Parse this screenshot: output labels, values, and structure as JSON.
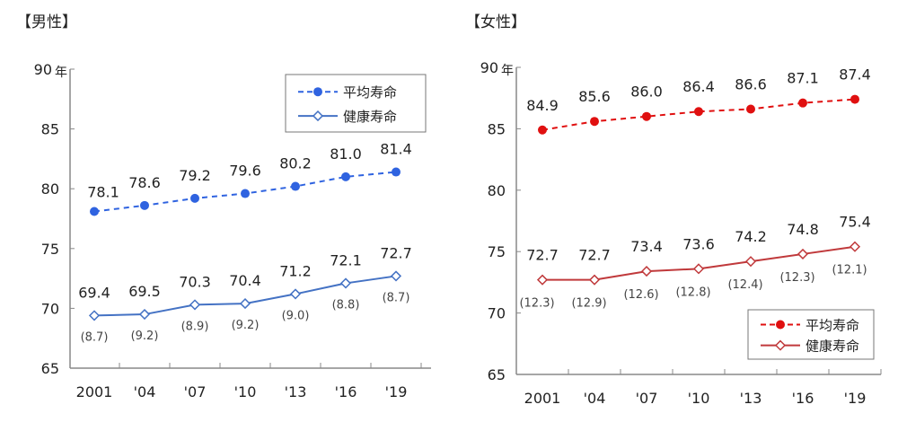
{
  "chart_data": [
    {
      "type": "line",
      "title": "【男性】",
      "y_unit": "年",
      "ylim": [
        65,
        90
      ],
      "yticks": [
        65,
        70,
        75,
        80,
        85,
        90
      ],
      "categories": [
        "2001",
        "'04",
        "'07",
        "'10",
        "'13",
        "'16",
        "'19"
      ],
      "legend_position": "top-right",
      "series": [
        {
          "name": "平均寿命",
          "values": [
            78.1,
            78.6,
            79.2,
            79.6,
            80.2,
            81.0,
            81.4
          ],
          "style": "dashed",
          "marker": "filled-circle",
          "color": "#2f63e0"
        },
        {
          "name": "健康寿命",
          "values": [
            69.4,
            69.5,
            70.3,
            70.4,
            71.2,
            72.1,
            72.7
          ],
          "style": "solid",
          "marker": "open-diamond",
          "color": "#4472c4",
          "gap_labels": [
            "(8.7)",
            "(9.2)",
            "(8.9)",
            "(9.2)",
            "(9.0)",
            "(8.8)",
            "(8.7)"
          ]
        }
      ]
    },
    {
      "type": "line",
      "title": "【女性】",
      "y_unit": "年",
      "ylim": [
        65,
        90
      ],
      "yticks": [
        65,
        70,
        75,
        80,
        85,
        90
      ],
      "categories": [
        "2001",
        "'04",
        "'07",
        "'10",
        "'13",
        "'16",
        "'19"
      ],
      "legend_position": "bottom-right",
      "series": [
        {
          "name": "平均寿命",
          "values": [
            84.9,
            85.6,
            86.0,
            86.4,
            86.6,
            87.1,
            87.4
          ],
          "style": "dashed",
          "marker": "filled-circle",
          "color": "#e01010"
        },
        {
          "name": "健康寿命",
          "values": [
            72.7,
            72.7,
            73.4,
            73.6,
            74.2,
            74.8,
            75.4
          ],
          "style": "solid",
          "marker": "open-diamond",
          "color": "#c0393b",
          "gap_labels": [
            "(12.3)",
            "(12.9)",
            "(12.6)",
            "(12.8)",
            "(12.4)",
            "(12.3)",
            "(12.1)"
          ]
        }
      ]
    }
  ]
}
